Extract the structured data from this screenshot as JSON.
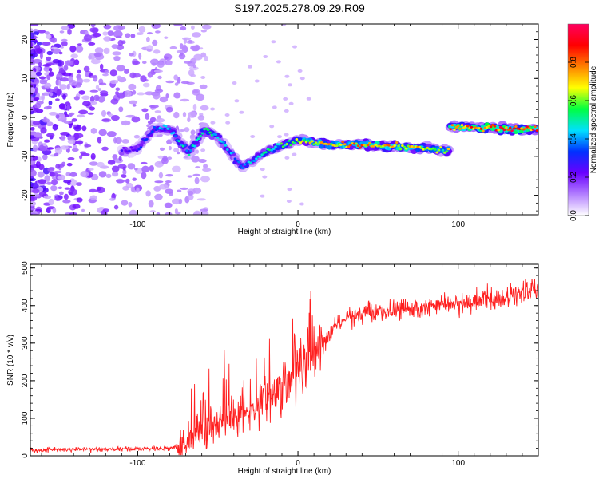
{
  "figure": {
    "title": "S197.2025.278.09.29.R09"
  },
  "chart_data": [
    {
      "type": "heatmap",
      "title": "S197.2025.278.09.29.R09",
      "xlabel": "Height of straight line (km)",
      "ylabel": "Frequency (Hz)",
      "xlim": [
        -167,
        150
      ],
      "ylim": [
        -25,
        24
      ],
      "xticks": [
        -100,
        0,
        100
      ],
      "yticks": [
        -20,
        -10,
        0,
        10,
        20
      ],
      "colorbar": {
        "label": "Normalized spectral amplitude",
        "ticks": [
          "0.0",
          "0.2",
          "0.4",
          "0.6",
          "0.8"
        ],
        "range": [
          0,
          1
        ],
        "colors": [
          "#ffffff",
          "#b37fff",
          "#6a00ff",
          "#0030ff",
          "#00e0ff",
          "#00ff40",
          "#ffff00",
          "#ff7f00",
          "#ff0000",
          "#ff0060"
        ]
      },
      "ridge": {
        "description_points": [
          {
            "x": -110,
            "freq": -9,
            "amp": 0.25
          },
          {
            "x": -100,
            "freq": -8,
            "amp": 0.3
          },
          {
            "x": -90,
            "freq": -3,
            "amp": 0.35
          },
          {
            "x": -80,
            "freq": -3,
            "amp": 0.45
          },
          {
            "x": -68,
            "freq": -9,
            "amp": 0.45
          },
          {
            "x": -58,
            "freq": -3,
            "amp": 0.5
          },
          {
            "x": -50,
            "freq": -5,
            "amp": 0.45
          },
          {
            "x": -42,
            "freq": -9,
            "amp": 0.4
          },
          {
            "x": -35,
            "freq": -13,
            "amp": 0.4
          },
          {
            "x": -25,
            "freq": -10,
            "amp": 0.45
          },
          {
            "x": -15,
            "freq": -8,
            "amp": 0.5
          },
          {
            "x": 0,
            "freq": -6,
            "amp": 0.6
          },
          {
            "x": 20,
            "freq": -7,
            "amp": 0.7
          },
          {
            "x": 40,
            "freq": -7,
            "amp": 0.75
          },
          {
            "x": 60,
            "freq": -7.5,
            "amp": 0.75
          },
          {
            "x": 80,
            "freq": -8,
            "amp": 0.7
          },
          {
            "x": 90,
            "freq": -8.5,
            "amp": 0.6
          },
          {
            "x": 95,
            "freq": -2.5,
            "amp": 0.75
          },
          {
            "x": 110,
            "freq": -2.5,
            "amp": 0.8
          },
          {
            "x": 130,
            "freq": -3,
            "amp": 0.85
          },
          {
            "x": 150,
            "freq": -3,
            "amp": 0.85
          }
        ]
      }
    },
    {
      "type": "line",
      "xlabel": "Height of straight line (km)",
      "ylabel": "SNR (10 * v/v)",
      "xlim": [
        -167,
        150
      ],
      "ylim": [
        0,
        510
      ],
      "xticks": [
        -100,
        0,
        100
      ],
      "yticks": [
        0,
        100,
        200,
        300,
        400,
        500
      ],
      "color": "#ff2020",
      "trend": [
        {
          "x": -167,
          "y": 15
        },
        {
          "x": -80,
          "y": 20
        },
        {
          "x": -70,
          "y": 35
        },
        {
          "x": -60,
          "y": 55
        },
        {
          "x": -50,
          "y": 80
        },
        {
          "x": -40,
          "y": 100
        },
        {
          "x": -30,
          "y": 110
        },
        {
          "x": -20,
          "y": 140
        },
        {
          "x": -10,
          "y": 180
        },
        {
          "x": 0,
          "y": 220
        },
        {
          "x": 8,
          "y": 250
        },
        {
          "x": 15,
          "y": 300
        },
        {
          "x": 25,
          "y": 355
        },
        {
          "x": 35,
          "y": 375
        },
        {
          "x": 50,
          "y": 385
        },
        {
          "x": 75,
          "y": 395
        },
        {
          "x": 100,
          "y": 405
        },
        {
          "x": 125,
          "y": 420
        },
        {
          "x": 150,
          "y": 440
        }
      ]
    }
  ]
}
